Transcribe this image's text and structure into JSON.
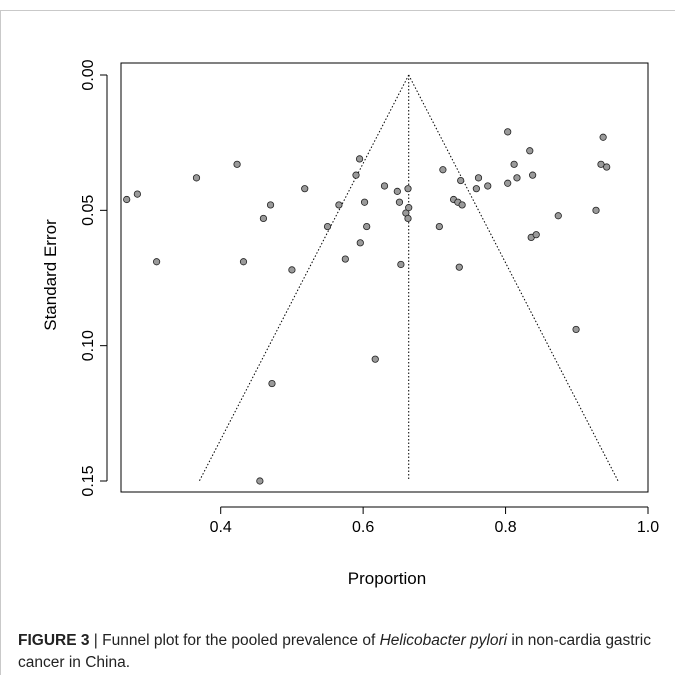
{
  "caption": {
    "label": "FIGURE 3",
    "separator": " | ",
    "text_before": "Funnel plot for the pooled prevalence of ",
    "species": "Helicobacter pylori",
    "text_after": " in non-cardia gastric cancer in China."
  },
  "chart_data": {
    "type": "scatter",
    "title": "",
    "xlabel": "Proportion",
    "ylabel": "Standard Error",
    "xlim": [
      0.26,
      1.0
    ],
    "ylim": [
      0.0,
      0.15
    ],
    "y_reversed": true,
    "grid": false,
    "xticks": [
      "0.4",
      "0.6",
      "0.8",
      "1.0"
    ],
    "yticks": [
      "0.00",
      "0.05",
      "0.10",
      "0.15"
    ],
    "marker_fill": "#9a9a9a",
    "marker_edge": "#222222",
    "funnel": {
      "pooled_proportion": 0.664,
      "se_max": 0.15,
      "lower_at_max": 0.37,
      "upper_at_max": 0.958
    },
    "points": [
      [
        0.268,
        0.046
      ],
      [
        0.283,
        0.044
      ],
      [
        0.31,
        0.069
      ],
      [
        0.366,
        0.038
      ],
      [
        0.423,
        0.033
      ],
      [
        0.432,
        0.069
      ],
      [
        0.455,
        0.15
      ],
      [
        0.46,
        0.053
      ],
      [
        0.47,
        0.048
      ],
      [
        0.472,
        0.114
      ],
      [
        0.5,
        0.072
      ],
      [
        0.518,
        0.042
      ],
      [
        0.55,
        0.056
      ],
      [
        0.566,
        0.048
      ],
      [
        0.575,
        0.068
      ],
      [
        0.59,
        0.037
      ],
      [
        0.595,
        0.031
      ],
      [
        0.596,
        0.062
      ],
      [
        0.602,
        0.047
      ],
      [
        0.605,
        0.056
      ],
      [
        0.617,
        0.105
      ],
      [
        0.63,
        0.041
      ],
      [
        0.648,
        0.043
      ],
      [
        0.651,
        0.047
      ],
      [
        0.653,
        0.07
      ],
      [
        0.66,
        0.051
      ],
      [
        0.663,
        0.053
      ],
      [
        0.663,
        0.042
      ],
      [
        0.664,
        0.049
      ],
      [
        0.707,
        0.056
      ],
      [
        0.712,
        0.035
      ],
      [
        0.727,
        0.046
      ],
      [
        0.733,
        0.047
      ],
      [
        0.735,
        0.071
      ],
      [
        0.737,
        0.039
      ],
      [
        0.739,
        0.048
      ],
      [
        0.759,
        0.042
      ],
      [
        0.762,
        0.038
      ],
      [
        0.775,
        0.041
      ],
      [
        0.803,
        0.021
      ],
      [
        0.803,
        0.04
      ],
      [
        0.812,
        0.033
      ],
      [
        0.816,
        0.038
      ],
      [
        0.834,
        0.028
      ],
      [
        0.836,
        0.06
      ],
      [
        0.838,
        0.037
      ],
      [
        0.843,
        0.059
      ],
      [
        0.874,
        0.052
      ],
      [
        0.899,
        0.094
      ],
      [
        0.927,
        0.05
      ],
      [
        0.934,
        0.033
      ],
      [
        0.937,
        0.023
      ],
      [
        0.942,
        0.034
      ]
    ]
  }
}
